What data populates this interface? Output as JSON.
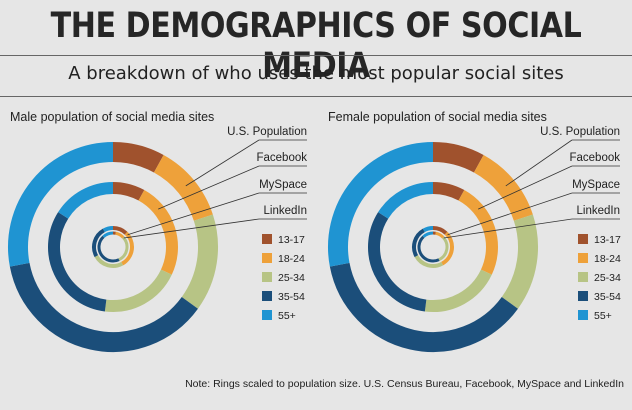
{
  "header": {
    "title": "THE DEMOGRAPHICS OF SOCIAL MEDIA",
    "subtitle": "A breakdown of who uses the most popular social sites"
  },
  "footer": {
    "note": "Note: Rings scaled to population size. U.S. Census Bureau, Facebook, MySpace and LinkedIn"
  },
  "colors": {
    "13-17": "#a0522d",
    "18-24": "#eea13a",
    "25-34": "#b7c485",
    "35-54": "#1b4e7a",
    "55+": "#1f94d2",
    "background": "#e6e6e6",
    "leader": "#333333"
  },
  "chart_data": [
    {
      "type": "pie",
      "subtype": "concentric-donut",
      "title": "Male population of social media sites",
      "legend": [
        "13-17",
        "18-24",
        "25-34",
        "35-54",
        "55+"
      ],
      "legend_placement": "right",
      "start_angle_deg": 0,
      "direction": "clockwise",
      "rings": [
        {
          "name": "U.S. Population",
          "values": [
            8,
            12,
            15,
            37,
            28
          ]
        },
        {
          "name": "Facebook",
          "values": [
            8,
            24,
            20,
            32,
            16
          ]
        },
        {
          "name": "MySpace",
          "values": [
            12,
            30,
            25,
            25,
            8
          ]
        },
        {
          "name": "LinkedIn",
          "values": [
            3,
            10,
            30,
            45,
            12
          ]
        }
      ]
    },
    {
      "type": "pie",
      "subtype": "concentric-donut",
      "title": "Female population of social media sites",
      "legend": [
        "13-17",
        "18-24",
        "25-34",
        "35-54",
        "55+"
      ],
      "legend_placement": "right",
      "start_angle_deg": 0,
      "direction": "clockwise",
      "rings": [
        {
          "name": "U.S. Population",
          "values": [
            8,
            12,
            15,
            37,
            28
          ]
        },
        {
          "name": "Facebook",
          "values": [
            8,
            24,
            20,
            32,
            16
          ]
        },
        {
          "name": "MySpace",
          "values": [
            12,
            30,
            25,
            25,
            8
          ]
        },
        {
          "name": "LinkedIn",
          "values": [
            3,
            10,
            30,
            45,
            12
          ]
        }
      ]
    }
  ]
}
